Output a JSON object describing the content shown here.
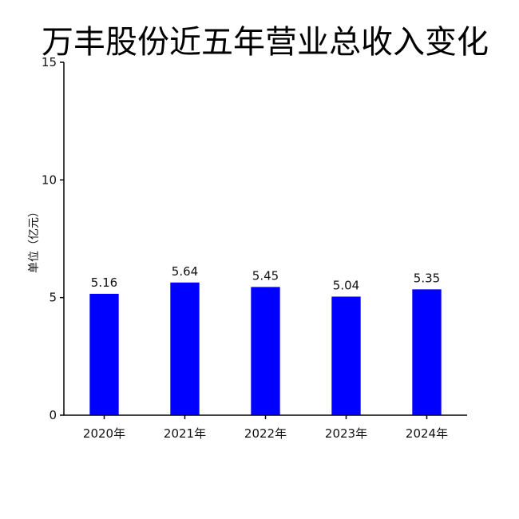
{
  "chart_data": {
    "type": "bar",
    "title": "万丰股份近五年营业总收入变化",
    "ylabel": "单位（亿元）",
    "xlabel": "",
    "categories": [
      "2020年",
      "2021年",
      "2022年",
      "2023年",
      "2024年"
    ],
    "values": [
      5.16,
      5.64,
      5.45,
      5.04,
      5.35
    ],
    "value_labels": [
      "5.16",
      "5.64",
      "5.45",
      "5.04",
      "5.35"
    ],
    "ylim": [
      0,
      15
    ],
    "yticks": [
      0,
      5,
      10,
      15
    ],
    "ytick_labels": [
      "0",
      "5",
      "10",
      "15"
    ],
    "bar_color": "#0000ff",
    "grid": false,
    "legend": "none"
  }
}
